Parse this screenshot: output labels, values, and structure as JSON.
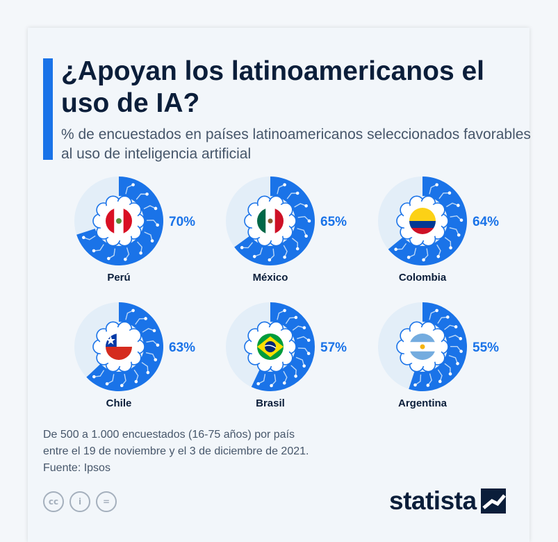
{
  "header": {
    "title": "¿Apoyan los latinoamericanos el uso de IA?",
    "subtitle": "% de encuestados en países latinoamericanos seleccionados favorables al uso de inteligencia artificial"
  },
  "colors": {
    "accent": "#1a73e8",
    "ring_fill": "#1a73e8",
    "ring_track": "#e3eef8",
    "label": "#1a73e8",
    "title": "#0b1e3a"
  },
  "chart_data": {
    "type": "pie",
    "title": "¿Apoyan los latinoamericanos el uso de IA?",
    "subtitle": "% de encuestados en países latinoamericanos seleccionados favorables al uso de inteligencia artificial",
    "unit": "%",
    "categories": [
      "Perú",
      "México",
      "Colombia",
      "Chile",
      "Brasil",
      "Argentina"
    ],
    "values": [
      70,
      65,
      64,
      63,
      57,
      55
    ],
    "labels": [
      "70%",
      "65%",
      "64%",
      "63%",
      "57%",
      "55%"
    ],
    "flags": [
      "peru-flag-icon",
      "mexico-flag-icon",
      "colombia-flag-icon",
      "chile-flag-icon",
      "brazil-flag-icon",
      "argentina-flag-icon"
    ]
  },
  "footer": {
    "note_line1": "De 500 a 1.000 encuestados (16-75 años) por país",
    "note_line2": "entre el 19 de noviembre y el 3 de diciembre de 2021.",
    "source": "Fuente: Ipsos",
    "license_icons": [
      "cc-icon",
      "by-icon",
      "nd-icon"
    ],
    "license_glyphs": [
      "cc",
      "i",
      "="
    ],
    "brand": "statista"
  }
}
